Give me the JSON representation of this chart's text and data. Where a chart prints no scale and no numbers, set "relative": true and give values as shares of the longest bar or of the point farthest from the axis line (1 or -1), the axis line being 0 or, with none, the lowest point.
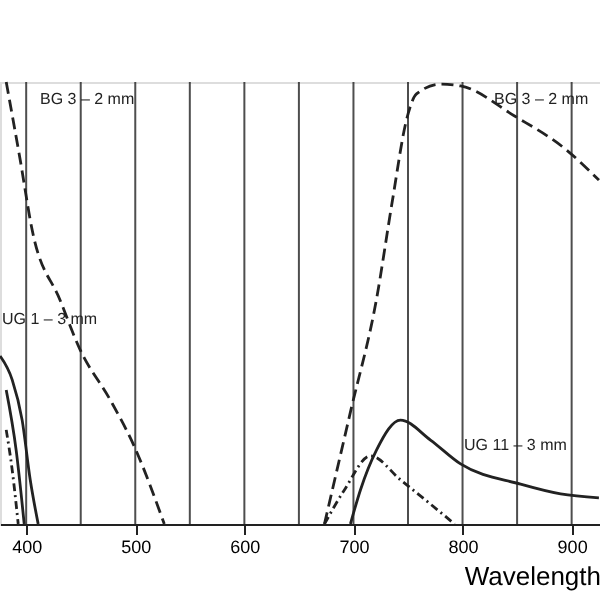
{
  "chart_data": {
    "type": "line",
    "relative": true,
    "xlabel": "Wavelength",
    "xlim": [
      376,
      926
    ],
    "xticks": [
      400,
      {
        "value": 450,
        "label": null
      },
      500,
      {
        "value": 550,
        "label": null
      },
      600,
      {
        "value": 650,
        "label": null
      },
      700,
      {
        "value": 750,
        "label": null
      },
      800,
      {
        "value": 850,
        "label": null
      },
      900
    ],
    "grid": "x",
    "series": [
      {
        "color": "#222222",
        "line_style": "dashed",
        "x": [
          381.7,
          394.5,
          405.5,
          431,
          449.5,
          477,
          499,
          526.6,
          null,
          673.4,
          697.2,
          721,
          735.8,
          748.6,
          757.8,
          779.8,
          798.2,
          847.7,
          895.4,
          925
        ],
        "values": [
          1.0,
          0.824,
          0.665,
          0.507,
          0.394,
          0.281,
          0.176,
          0,
          null,
          0,
          0.253,
          0.507,
          0.733,
          0.914,
          0.973,
          0.995,
          0.991,
          0.923,
          0.846,
          0.778
        ]
      },
      {
        "color": "#222222",
        "line_style": "solid",
        "x": [
          376.1,
          387.2,
          396.3,
          403.7,
          411
        ],
        "values": [
          0.38,
          0.326,
          0.235,
          0.1,
          0
        ]
      },
      {
        "color": "#222222",
        "line_style": "solid",
        "x": [
          381.7,
          390.8,
          398.2
        ],
        "values": [
          0.303,
          0.167,
          0
        ]
      },
      {
        "color": "#222222",
        "line_style": "dotted",
        "x": [
          381.7,
          387.2,
          392.7
        ],
        "values": [
          0.213,
          0.122,
          0
        ]
      },
      {
        "color": "#222222",
        "line_style": "solid",
        "x": [
          697.2,
          706.4,
          721.1,
          743.1,
          770.6,
          798.2,
          853.2,
          889.9,
          925
        ],
        "values": [
          0,
          0.077,
          0.167,
          0.235,
          0.19,
          0.136,
          0.09,
          0.068,
          0.059
        ]
      },
      {
        "color": "#222222",
        "line_style": "dotted",
        "x": [
          673.4,
          691.7,
          715.6,
          743.1,
          770.6,
          792.7
        ],
        "values": [
          0,
          0.077,
          0.154,
          0.1,
          0.045,
          0
        ]
      }
    ],
    "annotations": [
      "BG 3 – 2 mm",
      "BG 3 – 2 mm",
      "UG 1 – 3 mm",
      "UG 11 – 3 mm"
    ]
  }
}
